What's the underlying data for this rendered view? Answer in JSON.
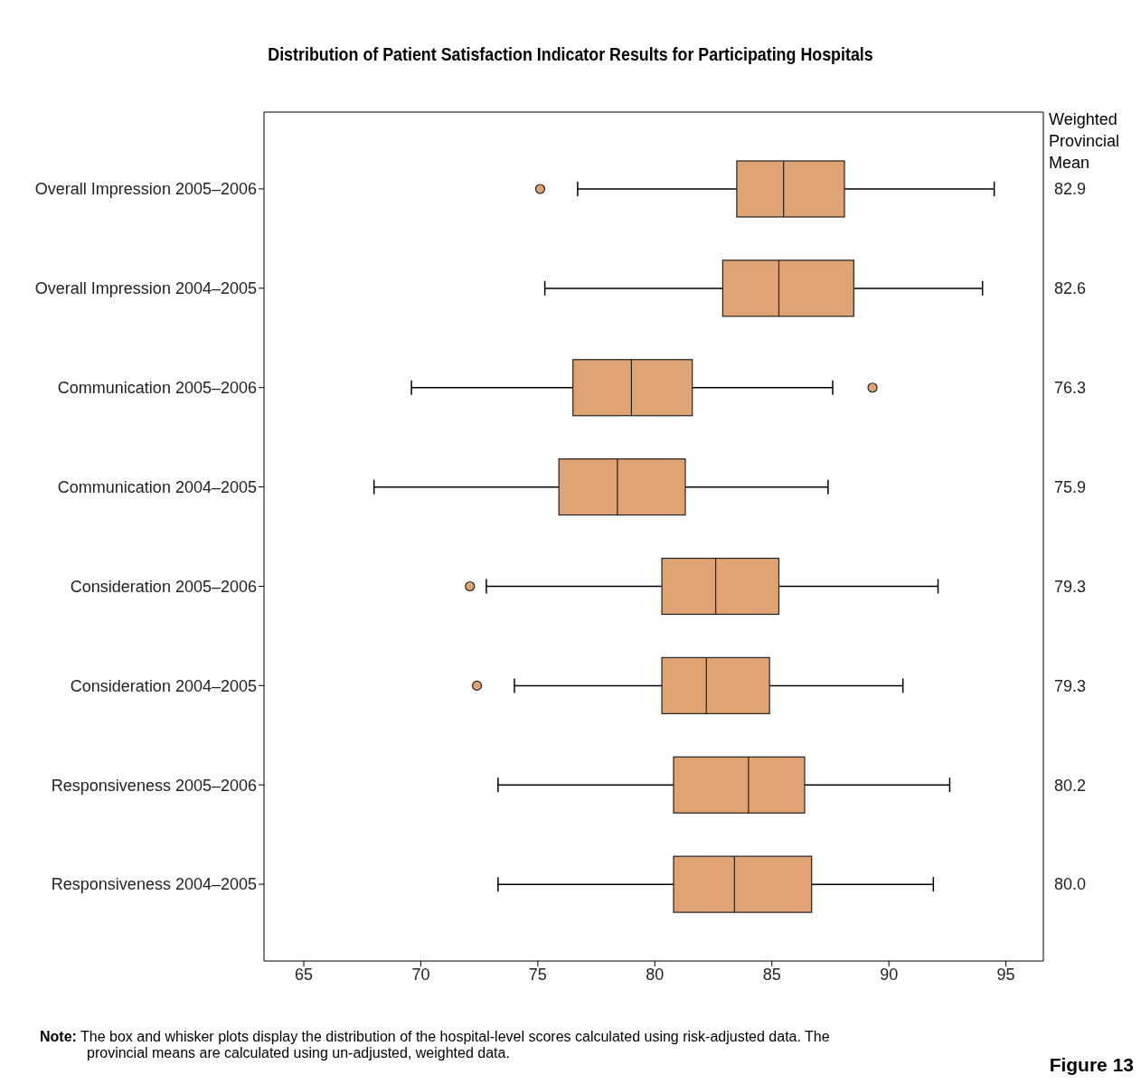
{
  "chart_data": {
    "type": "box",
    "title": "Distribution of Patient Satisfaction Indicator Results for Participating Hospitals",
    "orientation": "horizontal",
    "y2label": "Weighted Provincial Mean",
    "categories": [
      "Overall Impression 2005–2006",
      "Overall Impression 2004–2005",
      "Communication 2005–2006",
      "Communication 2004–2005",
      "Consideration 2005–2006",
      "Consideration 2004–2005",
      "Responsiveness 2005–2006",
      "Responsiveness 2004–2005"
    ],
    "color": "#e0a373",
    "boxes": [
      {
        "low": 76.7,
        "q1": 83.5,
        "median": 85.5,
        "q3": 88.1,
        "high": 94.5,
        "outliers": [
          75.1
        ]
      },
      {
        "low": 75.3,
        "q1": 82.9,
        "median": 85.3,
        "q3": 88.5,
        "high": 94.0
      },
      {
        "low": 69.6,
        "q1": 76.5,
        "median": 79.0,
        "q3": 81.6,
        "high": 87.6,
        "outliers": [
          89.3
        ]
      },
      {
        "low": 68.0,
        "q1": 75.9,
        "median": 78.4,
        "q3": 81.3,
        "high": 87.4
      },
      {
        "low": 72.8,
        "q1": 80.3,
        "median": 82.6,
        "q3": 85.3,
        "high": 92.1,
        "outliers": [
          72.1
        ]
      },
      {
        "low": 74.0,
        "q1": 80.3,
        "median": 82.2,
        "q3": 84.9,
        "high": 90.6,
        "outliers": [
          72.4
        ]
      },
      {
        "low": 73.3,
        "q1": 80.8,
        "median": 84.0,
        "q3": 86.4,
        "high": 92.6
      },
      {
        "low": 73.3,
        "q1": 80.8,
        "median": 83.4,
        "q3": 86.7,
        "high": 91.9
      }
    ],
    "xlim": [
      63.3,
      96.6
    ],
    "xticks": [
      65,
      70,
      75,
      80,
      85,
      90,
      95
    ],
    "grid": false,
    "annotations": [
      "82.9",
      "82.6",
      "76.3",
      "75.9",
      "79.3",
      "79.3",
      "80.2",
      "80.0",
      "Note: The box and whisker plots display the distribution of the hospital-level scores calculated using risk-adjusted data. The provincial means are calculated using un-adjusted, weighted data.",
      "Figure 13"
    ]
  }
}
